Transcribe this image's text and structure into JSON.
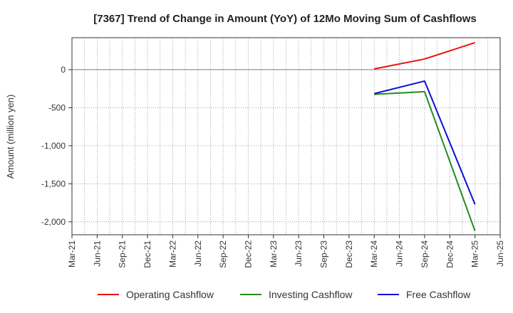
{
  "chart_data": {
    "type": "line",
    "title": "[7367]  Trend of Change in Amount (YoY) of 12Mo Moving Sum of Cashflows",
    "xlabel": "",
    "ylabel": "Amount (million yen)",
    "ylim": [
      -2170,
      420
    ],
    "yticks": [
      0,
      -500,
      -1000,
      -1500,
      -2000
    ],
    "ytick_labels": [
      "0",
      "-500",
      "-1,000",
      "-1,500",
      "-2,000"
    ],
    "categories": [
      "Mar-21",
      "Jun-21",
      "Sep-21",
      "Dec-21",
      "Mar-22",
      "Jun-22",
      "Sep-22",
      "Dec-22",
      "Mar-23",
      "Jun-23",
      "Sep-23",
      "Dec-23",
      "Mar-24",
      "Jun-24",
      "Sep-24",
      "Dec-24",
      "Mar-25",
      "Jun-25"
    ],
    "grid": true,
    "legend_position": "bottom",
    "series": [
      {
        "name": "Operating Cashflow",
        "color": "#e8120c",
        "points": [
          {
            "x": "Mar-24",
            "y": 10
          },
          {
            "x": "Sep-24",
            "y": 140
          },
          {
            "x": "Mar-25",
            "y": 355
          }
        ]
      },
      {
        "name": "Investing Cashflow",
        "color": "#238b23",
        "points": [
          {
            "x": "Mar-24",
            "y": -325
          },
          {
            "x": "Sep-24",
            "y": -290
          },
          {
            "x": "Mar-25",
            "y": -2120
          }
        ]
      },
      {
        "name": "Free Cashflow",
        "color": "#0a10d8",
        "points": [
          {
            "x": "Mar-24",
            "y": -315
          },
          {
            "x": "Sep-24",
            "y": -150
          },
          {
            "x": "Mar-25",
            "y": -1770
          }
        ]
      }
    ]
  }
}
